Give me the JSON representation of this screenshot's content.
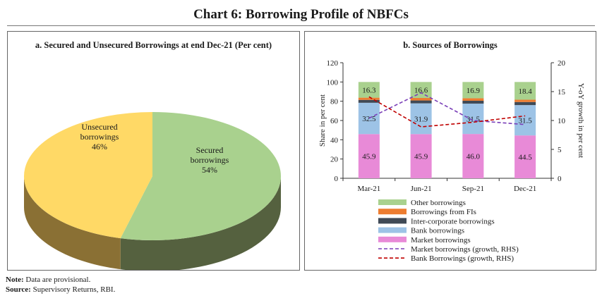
{
  "title": "Chart 6: Borrowing Profile of NBFCs",
  "panel_a": {
    "title": "a. Secured and Unsecured Borrowings at end Dec-21 (Per cent)"
  },
  "panel_b": {
    "title": "b. Sources of Borrowings"
  },
  "notes": {
    "note_label": "Note:",
    "note_text": "Data are provisional.",
    "source_label": "Source:",
    "source_text": "Supervisory Returns, RBI."
  },
  "chart_data": [
    {
      "type": "pie",
      "title": "a. Secured and Unsecured Borrowings at end Dec-21 (Per cent)",
      "slices": [
        {
          "label": "Secured borrowings",
          "value": 54,
          "value_label": "54%",
          "color": "#a9d18e",
          "side_color": "#55613f"
        },
        {
          "label": "Unsecured borrowings",
          "value": 46,
          "value_label": "46%",
          "color": "#ffd966",
          "side_color": "#8a7034"
        }
      ]
    },
    {
      "type": "bar",
      "stacked": true,
      "title": "b. Sources of Borrowings",
      "categories": [
        "Mar-21",
        "Jun-21",
        "Sep-21",
        "Dec-21"
      ],
      "ylabel": "Share in per cent",
      "ylim": [
        0,
        120
      ],
      "yticks": [
        0,
        20,
        40,
        60,
        80,
        100,
        120
      ],
      "y2label": "Y-oY growth in per cent",
      "y2lim": [
        0,
        20
      ],
      "y2ticks": [
        0,
        5,
        10,
        15,
        20
      ],
      "series": [
        {
          "name": "Market borrowings",
          "values": [
            45.9,
            45.9,
            46.0,
            44.5
          ],
          "labels": [
            "45.9",
            "45.9",
            "46.0",
            "44.5"
          ],
          "color": "#e88ad7"
        },
        {
          "name": "Bank borrowings",
          "values": [
            32.5,
            31.9,
            31.5,
            31.5
          ],
          "labels": [
            "32.5",
            "31.9",
            "31.5",
            "31.5"
          ],
          "color": "#9dc3e6"
        },
        {
          "name": "Inter-corporate borrowings",
          "values": [
            3.0,
            3.0,
            3.0,
            3.2
          ],
          "color": "#404a56"
        },
        {
          "name": "Borrowings from FIs",
          "values": [
            2.3,
            2.6,
            2.6,
            2.4
          ],
          "color": "#ed7d31"
        },
        {
          "name": "Other borrowings",
          "values": [
            16.3,
            16.6,
            16.9,
            18.4
          ],
          "labels": [
            "16.3",
            "16.6",
            "16.9",
            "18.4"
          ],
          "color": "#a9d18e"
        }
      ],
      "lines": [
        {
          "name": "Market borrowings (growth, RHS)",
          "values": [
            10.4,
            14.8,
            10.0,
            9.3
          ],
          "color": "#7a3fb8",
          "axis": "right"
        },
        {
          "name": "Bank Borrowings (growth, RHS)",
          "values": [
            14.1,
            8.9,
            9.7,
            10.8
          ],
          "color": "#c00000",
          "axis": "right"
        }
      ],
      "legend_position": "bottom"
    }
  ]
}
